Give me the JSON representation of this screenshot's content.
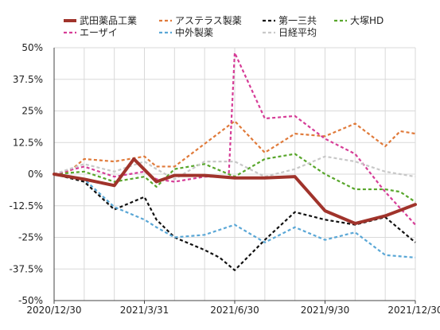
{
  "chart_data": {
    "type": "line",
    "title": "",
    "xlabel": "",
    "ylabel": "",
    "x_tick_labels": [
      "2020/12/30",
      "2021/3/31",
      "2021/6/30",
      "2021/9/30",
      "2021/12/30"
    ],
    "x_ticks_index": [
      0,
      3,
      6,
      9,
      12
    ],
    "x": [
      "2020/12/30",
      "2021/1/30",
      "2021/2/28",
      "2021/3/31",
      "2021/4/30",
      "2021/5/31",
      "2021/6/30",
      "2021/7/31",
      "2021/8/31",
      "2021/9/30",
      "2021/10/31",
      "2021/11/30",
      "2021/12/30"
    ],
    "ylim": [
      -50,
      50
    ],
    "y_ticks": [
      -50,
      -37.5,
      -25,
      -12.5,
      0,
      12.5,
      25,
      37.5,
      50
    ],
    "y_tick_labels": [
      "-50%",
      "-37.5%",
      "-25%",
      "-12.5%",
      "0%",
      "12.5%",
      "25%",
      "37.5%",
      "50%"
    ],
    "grid": true,
    "legend_position": "top",
    "series": [
      {
        "name": "武田薬品工業",
        "color": "#a0332b",
        "style": "solid",
        "width": 4,
        "x": [
          0,
          1,
          2,
          2.65,
          3.4,
          4,
          5,
          6,
          7,
          8,
          9,
          10,
          11,
          12
        ],
        "values": [
          0,
          -2,
          -4.5,
          6,
          -3,
          -0.5,
          -0.5,
          -1.5,
          -1.5,
          -1,
          -14.5,
          -19.5,
          -16.5,
          -12
        ]
      },
      {
        "name": "アステラス製薬",
        "color": "#e07a3a",
        "style": "dashed",
        "width": 2.2,
        "x": [
          0,
          0.5,
          1,
          2,
          3,
          3.4,
          4,
          5,
          6,
          7,
          8,
          9,
          9.5,
          10,
          11,
          11.5,
          12
        ],
        "values": [
          0,
          1,
          6,
          5,
          7,
          3,
          3,
          12,
          21,
          8.5,
          16,
          15,
          17.5,
          20,
          11,
          17,
          16
        ]
      },
      {
        "name": "第一三共",
        "color": "#111111",
        "style": "dashed",
        "width": 2.2,
        "x": [
          0,
          1,
          2,
          2.6,
          3,
          3.4,
          4,
          5,
          5.5,
          6,
          7,
          8,
          9,
          10,
          11,
          12
        ],
        "values": [
          0,
          -3,
          -14,
          -11,
          -9,
          -18,
          -25,
          -30,
          -33,
          -38,
          -26,
          -15,
          -18,
          -20,
          -17,
          -27
        ]
      },
      {
        "name": "大塚HD",
        "color": "#58a62b",
        "style": "dashed",
        "width": 2.2,
        "x": [
          0,
          1,
          2,
          3,
          3.4,
          4,
          5,
          6,
          7,
          8,
          9,
          10,
          11,
          11.5,
          12
        ],
        "values": [
          0,
          1,
          -3,
          -1,
          -5,
          2,
          4,
          -1,
          6,
          8,
          0,
          -6,
          -6,
          -7,
          -11
        ]
      },
      {
        "name": "エーザイ",
        "color": "#d63d97",
        "style": "dashed",
        "width": 2.2,
        "x": [
          0,
          1,
          2,
          3,
          3.4,
          4,
          5,
          5.8,
          6,
          7,
          8,
          9,
          10,
          11,
          12
        ],
        "values": [
          0,
          3,
          -1,
          1,
          -2,
          -3,
          -1,
          -1,
          48,
          22,
          23,
          14,
          8,
          -7,
          -20
        ]
      },
      {
        "name": "中外製薬",
        "color": "#5aa7d6",
        "style": "dashed",
        "width": 2.2,
        "x": [
          0,
          1,
          2,
          3,
          3.4,
          4,
          5,
          6,
          7,
          8,
          9,
          10,
          11,
          12
        ],
        "values": [
          0,
          -2,
          -13,
          -18,
          -21,
          -25,
          -24,
          -20,
          -27,
          -21,
          -26,
          -23,
          -32,
          -33
        ]
      },
      {
        "name": "日経平均",
        "color": "#c8c8c8",
        "style": "dashed",
        "width": 2.2,
        "x": [
          0,
          1,
          2,
          3,
          3.4,
          4,
          5,
          6,
          7,
          8,
          9,
          10,
          11,
          12
        ],
        "values": [
          0,
          4,
          1,
          5,
          2,
          -2,
          5,
          5,
          -1,
          2,
          7,
          5,
          1,
          -1
        ]
      }
    ]
  }
}
